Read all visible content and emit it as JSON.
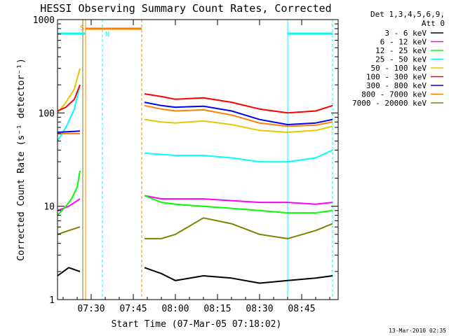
{
  "chart_data": {
    "type": "line",
    "title": "HESSI Observing Summary Count Rates, Corrected",
    "xlabel": "Start Time (07-Mar-05 07:18:02)",
    "ylabel": "Corrected Count Rate (s⁻¹ detector⁻¹)",
    "yscale": "log",
    "ylim": [
      1,
      1000
    ],
    "xlim": [
      "07:18",
      "08:58"
    ],
    "x_ticks": [
      "07:30",
      "07:45",
      "08:00",
      "08:15",
      "08:30",
      "08:45"
    ],
    "y_ticks": [
      "1",
      "10",
      "100",
      "1000"
    ],
    "grid": false,
    "legend": {
      "placement": "right",
      "header": [
        "Det 1,3,4,5,6,9,",
        "Att 0"
      ],
      "entries": [
        {
          "label": "3 - 6 keV",
          "color": "#000000"
        },
        {
          "label": "6 - 12 keV",
          "color": "#ff00ff"
        },
        {
          "label": "12 - 25 keV",
          "color": "#00ff00"
        },
        {
          "label": "25 - 50 keV",
          "color": "#00ffff"
        },
        {
          "label": "50 - 100 keV",
          "color": "#e6c800"
        },
        {
          "label": "100 - 300 keV",
          "color": "#ff0000"
        },
        {
          "label": "300 - 800 keV",
          "color": "#0000ff"
        },
        {
          "label": "800 - 7000 keV",
          "color": "#ff8000"
        },
        {
          "label": "7000 - 20000 keV",
          "color": "#808000"
        }
      ]
    },
    "annotations": [
      {
        "text": "S",
        "color": "#ff8000"
      },
      {
        "text": "N",
        "color": "#00ffff"
      }
    ],
    "series": [
      {
        "name": "3 - 6 keV",
        "color": "#000000",
        "segments": [
          {
            "x": [
              "07:18",
              "07:22",
              "07:26"
            ],
            "y": [
              1.8,
              2.2,
              2.0
            ]
          },
          {
            "x": [
              "07:49",
              "07:55",
              "08:00",
              "08:10",
              "08:20",
              "08:30",
              "08:40",
              "08:50",
              "08:56"
            ],
            "y": [
              2.2,
              1.9,
              1.6,
              1.8,
              1.7,
              1.5,
              1.6,
              1.7,
              1.8
            ]
          }
        ]
      },
      {
        "name": "6 - 12 keV",
        "color": "#ff00ff",
        "segments": [
          {
            "x": [
              "07:18",
              "07:22",
              "07:26"
            ],
            "y": [
              9,
              10,
              12
            ]
          },
          {
            "x": [
              "07:49",
              "07:55",
              "08:00",
              "08:10",
              "08:20",
              "08:30",
              "08:40",
              "08:50",
              "08:56"
            ],
            "y": [
              13,
              12,
              12,
              12,
              11.5,
              11,
              11,
              10.5,
              11
            ]
          }
        ]
      },
      {
        "name": "12 - 25 keV",
        "color": "#00ff00",
        "segments": [
          {
            "x": [
              "07:18",
              "07:21",
              "07:23",
              "07:25",
              "07:26"
            ],
            "y": [
              8,
              10,
              12,
              16,
              24
            ]
          },
          {
            "x": [
              "07:49",
              "07:55",
              "08:00",
              "08:10",
              "08:20",
              "08:30",
              "08:40",
              "08:50",
              "08:56"
            ],
            "y": [
              13,
              11,
              10.5,
              10,
              9.5,
              9,
              8.5,
              8.5,
              9
            ]
          }
        ]
      },
      {
        "name": "25 - 50 keV",
        "color": "#00ffff",
        "segments": [
          {
            "x": [
              "07:18",
              "07:21",
              "07:24",
              "07:26"
            ],
            "y": [
              50,
              70,
              110,
              200
            ]
          },
          {
            "x": [
              "07:49",
              "07:55",
              "08:00",
              "08:10",
              "08:20",
              "08:30",
              "08:40",
              "08:50",
              "08:56"
            ],
            "y": [
              37,
              36,
              35,
              35,
              33,
              30,
              30,
              33,
              40
            ]
          }
        ]
      },
      {
        "name": "50 - 100 keV",
        "color": "#e6c800",
        "segments": [
          {
            "x": [
              "07:18",
              "07:21",
              "07:24",
              "07:26"
            ],
            "y": [
              100,
              130,
              180,
              300
            ]
          },
          {
            "x": [
              "07:49",
              "07:55",
              "08:00",
              "08:10",
              "08:20",
              "08:30",
              "08:40",
              "08:50",
              "08:56"
            ],
            "y": [
              85,
              80,
              78,
              82,
              75,
              65,
              62,
              65,
              72
            ]
          }
        ]
      },
      {
        "name": "100 - 300 keV",
        "color": "#ff0000",
        "segments": [
          {
            "x": [
              "07:18",
              "07:21",
              "07:24",
              "07:26"
            ],
            "y": [
              105,
              115,
              140,
              200
            ]
          },
          {
            "x": [
              "07:49",
              "07:55",
              "08:00",
              "08:10",
              "08:20",
              "08:30",
              "08:40",
              "08:50",
              "08:56"
            ],
            "y": [
              160,
              150,
              140,
              145,
              130,
              110,
              100,
              105,
              120
            ]
          }
        ]
      },
      {
        "name": "300 - 800 keV",
        "color": "#0000ff",
        "segments": [
          {
            "x": [
              "07:18",
              "07:22",
              "07:26"
            ],
            "y": [
              62,
              63,
              64
            ]
          },
          {
            "x": [
              "07:49",
              "07:55",
              "08:00",
              "08:10",
              "08:20",
              "08:30",
              "08:40",
              "08:50",
              "08:56"
            ],
            "y": [
              130,
              120,
              115,
              118,
              105,
              85,
              75,
              78,
              85
            ]
          }
        ]
      },
      {
        "name": "800 - 7000 keV",
        "color": "#ff8000",
        "segments": [
          {
            "x": [
              "07:18",
              "07:22",
              "07:26"
            ],
            "y": [
              60,
              60,
              60
            ]
          },
          {
            "x": [
              "07:49",
              "07:55",
              "08:00",
              "08:10",
              "08:20",
              "08:30",
              "08:40",
              "08:50",
              "08:56"
            ],
            "y": [
              120,
              110,
              105,
              108,
              95,
              78,
              72,
              74,
              80
            ]
          }
        ]
      },
      {
        "name": "7000 - 20000 keV",
        "color": "#808000",
        "segments": [
          {
            "x": [
              "07:18",
              "07:22",
              "07:26"
            ],
            "y": [
              5,
              5.5,
              6
            ]
          },
          {
            "x": [
              "07:49",
              "07:55",
              "08:00",
              "08:10",
              "08:20",
              "08:30",
              "08:40",
              "08:50",
              "08:56"
            ],
            "y": [
              4.5,
              4.5,
              5,
              7.5,
              6.5,
              5,
              4.5,
              5.5,
              6.5
            ]
          }
        ]
      }
    ]
  },
  "footer": {
    "timestamp": "13-Mar-2010 02:35"
  }
}
